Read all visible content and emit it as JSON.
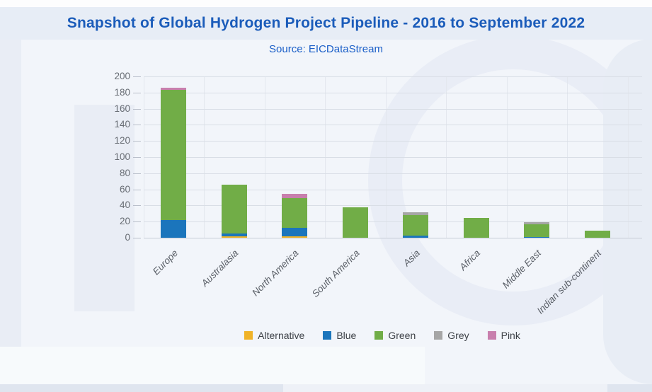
{
  "header": {
    "title": "Snapshot of Global Hydrogen Project Pipeline - 2016 to September 2022",
    "source": "Source: EICDataStream"
  },
  "chart_data": {
    "type": "bar",
    "stacked": true,
    "title": "Snapshot of Global Hydrogen Project Pipeline - 2016 to September 2022",
    "categories": [
      "Europe",
      "Australasia",
      "North America",
      "South America",
      "Asia",
      "Africa",
      "Middle East",
      "Indian sub-continent"
    ],
    "series": [
      {
        "name": "Alternative",
        "color": "#f0b327",
        "values": [
          0,
          2,
          2,
          0,
          0,
          0,
          0,
          0
        ]
      },
      {
        "name": "Blue",
        "color": "#1b75bc",
        "values": [
          22,
          3,
          10,
          0,
          3,
          0,
          1,
          0
        ]
      },
      {
        "name": "Green",
        "color": "#71ad47",
        "values": [
          161,
          61,
          37,
          38,
          25,
          25,
          16,
          9
        ]
      },
      {
        "name": "Grey",
        "color": "#a6a6a6",
        "values": [
          0,
          0,
          0,
          0,
          4,
          0,
          2,
          0
        ]
      },
      {
        "name": "Pink",
        "color": "#c87fad",
        "values": [
          3,
          0,
          5,
          0,
          0,
          0,
          0,
          0
        ]
      }
    ],
    "totals": [
      186,
      66,
      54,
      38,
      32,
      25,
      19,
      9
    ],
    "ylim": [
      0,
      200
    ],
    "yticks": [
      0,
      20,
      40,
      60,
      80,
      100,
      120,
      140,
      160,
      180,
      200
    ],
    "xlabel": "",
    "ylabel": "",
    "grid": true,
    "legend_position": "bottom"
  },
  "colors": {
    "title_text": "#1b5cba",
    "source_text": "#1b5fc8",
    "background": "#f2f5fa",
    "title_band": "#e7edf6",
    "gridline": "#d9dee6",
    "axis_label": "#686d74"
  }
}
